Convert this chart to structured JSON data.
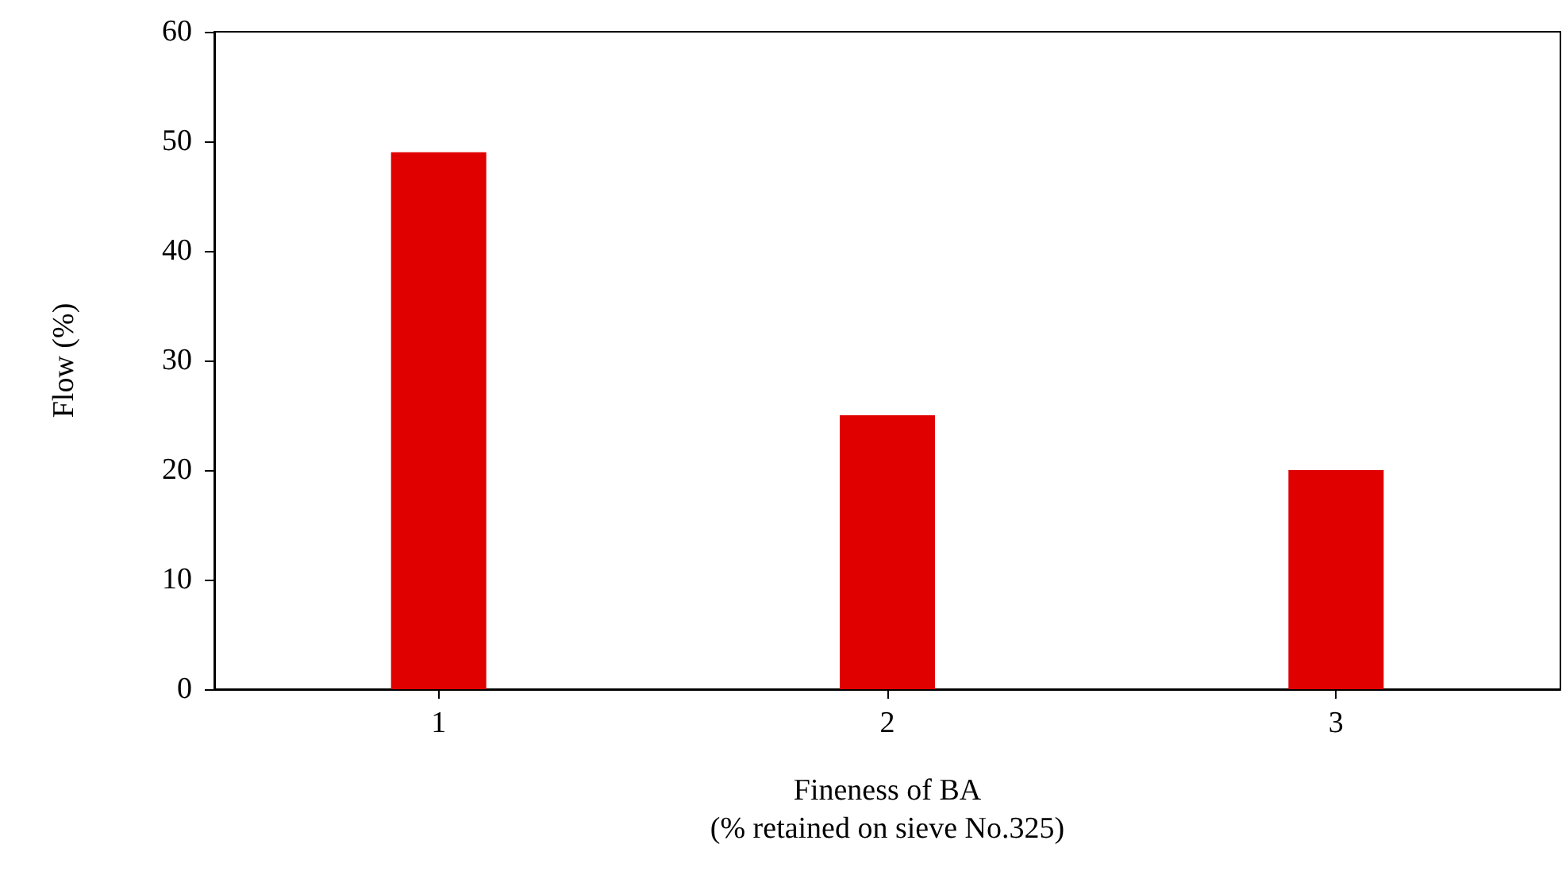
{
  "chart_data": {
    "type": "bar",
    "xlabel": "Fineness of BA\n(% retained on sieve No.325)",
    "ylabel": "Flow (%)",
    "categories": [
      "1",
      "2",
      "3"
    ],
    "series": [
      {
        "color": "#e00000",
        "values": [
          49,
          25,
          20
        ]
      }
    ],
    "ylim": [
      0,
      60
    ],
    "yticks": [
      0,
      10,
      20,
      30,
      40,
      50,
      60
    ],
    "grid": false
  }
}
